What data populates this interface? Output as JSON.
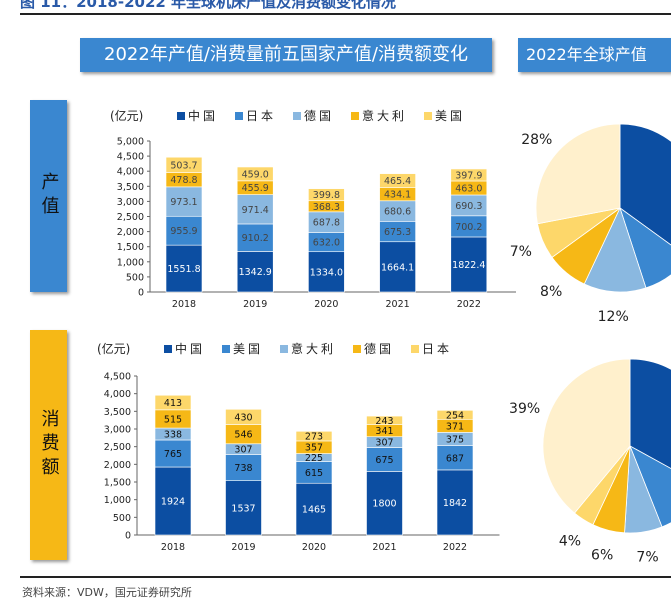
{
  "figure_title": "图 11：2018-2022 年全球机床产值及消费额变化情况",
  "header_left": "2022年产值/消费量前五国家产值/消费额变化",
  "header_right": "2022年全球产值",
  "side_labels": {
    "production": "产值",
    "consumption": "消费额"
  },
  "footer": "资料来源：VDW，国元证券研究所",
  "colors": [
    "#0c4ea2",
    "#3a87d0",
    "#8ab8e0",
    "#f6b816",
    "#fdd76a",
    "#fff0cc"
  ],
  "chart_data": [
    {
      "type": "bar",
      "stacked": true,
      "unit": "(亿元)",
      "categories": [
        "2018",
        "2019",
        "2020",
        "2021",
        "2022"
      ],
      "ylim": [
        0,
        5000
      ],
      "yticks": [
        "0",
        "500",
        "1,000",
        "1,500",
        "2,000",
        "2,500",
        "3,000",
        "3,500",
        "4,000",
        "4,500",
        "5,000"
      ],
      "legend": "top",
      "series": [
        {
          "name": "中国",
          "values": [
            1551.8,
            1342.9,
            1334.0,
            1664.1,
            1822.4
          ]
        },
        {
          "name": "日本",
          "values": [
            955.9,
            910.2,
            632.0,
            675.3,
            700.2
          ]
        },
        {
          "name": "德国",
          "values": [
            973.1,
            971.4,
            687.8,
            680.6,
            690.3
          ]
        },
        {
          "name": "意大利",
          "values": [
            478.8,
            455.9,
            368.3,
            434.1,
            463.0
          ]
        },
        {
          "name": "美国",
          "values": [
            503.7,
            459.0,
            399.8,
            465.4,
            397.9
          ]
        }
      ]
    },
    {
      "type": "bar",
      "stacked": true,
      "unit": "(亿元)",
      "categories": [
        "2018",
        "2019",
        "2020",
        "2021",
        "2022"
      ],
      "ylim": [
        0,
        4500
      ],
      "yticks": [
        "0",
        "500",
        "1,000",
        "1,500",
        "2,000",
        "2,500",
        "3,000",
        "3,500",
        "4,000",
        "4,500"
      ],
      "legend": "top",
      "series": [
        {
          "name": "中国",
          "values": [
            1924,
            1537,
            1465,
            1800,
            1842
          ]
        },
        {
          "name": "美国",
          "values": [
            765,
            738,
            615,
            675,
            687
          ]
        },
        {
          "name": "意大利",
          "values": [
            338,
            307,
            225,
            307,
            375
          ]
        },
        {
          "name": "德国",
          "values": [
            515,
            546,
            357,
            341,
            371
          ]
        },
        {
          "name": "日本",
          "values": [
            413,
            430,
            273,
            243,
            254
          ]
        }
      ]
    },
    {
      "type": "pie",
      "slices": [
        {
          "value": 35,
          "label": ""
        },
        {
          "value": 10,
          "label": ""
        },
        {
          "value": 12,
          "label": "12%"
        },
        {
          "value": 8,
          "label": "8%"
        },
        {
          "value": 7,
          "label": "7%"
        },
        {
          "value": 28,
          "label": "28%"
        }
      ]
    },
    {
      "type": "pie",
      "slices": [
        {
          "value": 33,
          "label": ""
        },
        {
          "value": 11,
          "label": ""
        },
        {
          "value": 7,
          "label": "7%"
        },
        {
          "value": 6,
          "label": "6%"
        },
        {
          "value": 4,
          "label": "4%"
        },
        {
          "value": 39,
          "label": "39%"
        }
      ]
    }
  ]
}
